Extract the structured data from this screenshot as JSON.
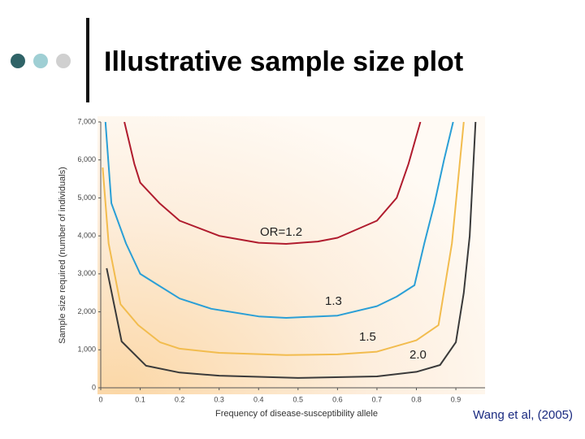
{
  "chart_data": {
    "type": "line",
    "title": "Illustrative sample size plot",
    "x_label": "Frequency of disease-susceptibility allele",
    "y_label": "Sample size required (number of individuals)",
    "source": "Wang et al, (2005)",
    "xlim": [
      0,
      0.974
    ],
    "ylim": [
      0,
      7000
    ],
    "xticks": [
      0,
      0.1,
      0.2,
      0.3,
      0.4,
      0.5,
      0.6,
      0.7,
      0.8,
      0.9
    ],
    "yticks": [
      0,
      {
        "value": 1000,
        "label": "1,000"
      },
      {
        "value": 2000,
        "label": "2,000"
      },
      {
        "value": 3000,
        "label": "3,000"
      },
      {
        "value": 4000,
        "label": "4,000"
      },
      {
        "value": 5000,
        "label": "5,000"
      },
      {
        "value": 6000,
        "label": "6,000"
      },
      {
        "value": 7000,
        "label": "7,000"
      }
    ],
    "series": [
      {
        "name": "OR=1.2",
        "color": "#b01c2e",
        "x": [
          0.06,
          0.085,
          0.1,
          0.15,
          0.2,
          0.3,
          0.4,
          0.47,
          0.55,
          0.6,
          0.7,
          0.75,
          0.78,
          0.81
        ],
        "values": [
          7000,
          5900,
          5400,
          4850,
          4400,
          4000,
          3820,
          3790,
          3850,
          3950,
          4400,
          5000,
          5900,
          7000
        ]
      },
      {
        "name": "1.3",
        "color": "#2a9fd6",
        "x": [
          0.012,
          0.027,
          0.064,
          0.1,
          0.146,
          0.2,
          0.28,
          0.4,
          0.47,
          0.6,
          0.7,
          0.75,
          0.795,
          0.82,
          0.846,
          0.87,
          0.893
        ],
        "values": [
          7000,
          4860,
          3800,
          3000,
          2700,
          2350,
          2080,
          1880,
          1840,
          1900,
          2150,
          2400,
          2700,
          3800,
          4860,
          6000,
          7000
        ]
      },
      {
        "name": "1.5",
        "color": "#f2bc4e",
        "x": [
          0.005,
          0.02,
          0.05,
          0.095,
          0.15,
          0.2,
          0.3,
          0.47,
          0.6,
          0.7,
          0.8,
          0.856,
          0.89,
          0.92
        ],
        "values": [
          5800,
          3800,
          2200,
          1650,
          1200,
          1030,
          920,
          860,
          880,
          950,
          1250,
          1650,
          3800,
          7000
        ]
      },
      {
        "name": "2.0",
        "color": "#3a3a3a",
        "x": [
          0.015,
          0.053,
          0.115,
          0.2,
          0.3,
          0.5,
          0.7,
          0.8,
          0.86,
          0.9,
          0.92,
          0.935,
          0.95
        ],
        "values": [
          3150,
          1220,
          580,
          400,
          320,
          260,
          300,
          420,
          600,
          1200,
          2500,
          4000,
          7000
        ]
      }
    ]
  }
}
